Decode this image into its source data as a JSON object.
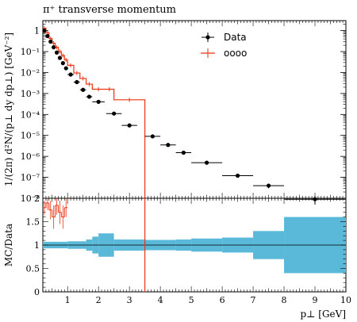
{
  "chart_data": {
    "type": "scatter",
    "title": "π⁺ transverse momentum",
    "ylabel": "1/(2π) d²N/(p⊥ dy dp⊥) [GeV⁻²]",
    "xlabel": "p⊥ [GeV]",
    "ratio_ylabel": "MC/Data",
    "xlim": [
      0.2,
      10
    ],
    "ylim_log": [
      1e-08,
      3
    ],
    "ratio_ylim": [
      0,
      2
    ],
    "x_ticks": [
      "1",
      "2",
      "3",
      "4",
      "5",
      "6",
      "7",
      "8",
      "9",
      "10"
    ],
    "y_ticks": [
      "1",
      "10⁻¹",
      "10⁻²",
      "10⁻³",
      "10⁻⁴",
      "10⁻⁵",
      "10⁻⁶",
      "10⁻⁷",
      "10⁻⁸"
    ],
    "ratio_y_ticks": [
      "0",
      "0.5",
      "1",
      "1.5",
      "2"
    ],
    "legend": {
      "position": "top-right",
      "entries": [
        "Data",
        "oooo"
      ]
    },
    "series": [
      {
        "name": "Data",
        "color": "#000000",
        "points": [
          {
            "x": 0.25,
            "y": 1.0,
            "xerr": 0.05,
            "yerr": 0.1
          },
          {
            "x": 0.35,
            "y": 0.55,
            "xerr": 0.05,
            "yerr": 0.06
          },
          {
            "x": 0.45,
            "y": 0.3,
            "xerr": 0.05,
            "yerr": 0.03
          },
          {
            "x": 0.55,
            "y": 0.16,
            "xerr": 0.05,
            "yerr": 0.02
          },
          {
            "x": 0.65,
            "y": 0.09,
            "xerr": 0.05,
            "yerr": 0.01
          },
          {
            "x": 0.75,
            "y": 0.05,
            "xerr": 0.05,
            "yerr": 0.005
          },
          {
            "x": 0.85,
            "y": 0.028,
            "xerr": 0.05,
            "yerr": 0.003
          },
          {
            "x": 0.95,
            "y": 0.016,
            "xerr": 0.05,
            "yerr": 0.002
          },
          {
            "x": 1.1,
            "y": 0.008,
            "xerr": 0.1,
            "yerr": 0.001
          },
          {
            "x": 1.3,
            "y": 0.0035,
            "xerr": 0.1,
            "yerr": 0.0004
          },
          {
            "x": 1.5,
            "y": 0.0015,
            "xerr": 0.1,
            "yerr": 0.0002
          },
          {
            "x": 1.7,
            "y": 0.0007,
            "xerr": 0.1,
            "yerr": 0.0001
          },
          {
            "x": 2.0,
            "y": 0.0004,
            "xerr": 0.2,
            "yerr": 6e-05
          },
          {
            "x": 2.5,
            "y": 0.00011,
            "xerr": 0.25,
            "yerr": 2e-05
          },
          {
            "x": 3.0,
            "y": 3e-05,
            "xerr": 0.25,
            "yerr": 5e-06
          },
          {
            "x": 3.75,
            "y": 9e-06,
            "xerr": 0.25,
            "yerr": 1.2e-06
          },
          {
            "x": 4.25,
            "y": 3.5e-06,
            "xerr": 0.25,
            "yerr": 5e-07
          },
          {
            "x": 4.75,
            "y": 1.5e-06,
            "xerr": 0.25,
            "yerr": 2e-07
          },
          {
            "x": 5.5,
            "y": 5e-07,
            "xerr": 0.5,
            "yerr": 7e-08
          },
          {
            "x": 6.5,
            "y": 1.2e-07,
            "xerr": 0.5,
            "yerr": 2e-08
          },
          {
            "x": 7.5,
            "y": 4e-08,
            "xerr": 0.5,
            "yerr": 1e-08
          },
          {
            "x": 9.0,
            "y": 9e-09,
            "xerr": 1.0,
            "yerr": 4e-09
          }
        ]
      },
      {
        "name": "oooo",
        "color": "#ee3311",
        "histogram": [
          {
            "x0": 0.2,
            "x1": 0.3,
            "y": 1.3
          },
          {
            "x0": 0.3,
            "x1": 0.4,
            "y": 0.8
          },
          {
            "x0": 0.4,
            "x1": 0.5,
            "y": 0.42
          },
          {
            "x0": 0.5,
            "x1": 0.6,
            "y": 0.25
          },
          {
            "x0": 0.6,
            "x1": 0.7,
            "y": 0.16
          },
          {
            "x0": 0.7,
            "x1": 0.8,
            "y": 0.1
          },
          {
            "x0": 0.8,
            "x1": 0.9,
            "y": 0.065
          },
          {
            "x0": 0.9,
            "x1": 1.0,
            "y": 0.04
          },
          {
            "x0": 1.0,
            "x1": 1.2,
            "y": 0.022
          },
          {
            "x0": 1.2,
            "x1": 1.4,
            "y": 0.0095
          },
          {
            "x0": 1.4,
            "x1": 1.6,
            "y": 0.0052
          },
          {
            "x0": 1.6,
            "x1": 1.8,
            "y": 0.0028
          },
          {
            "x0": 1.8,
            "x1": 2.2,
            "y": 0.0016
          },
          {
            "x0": 2.2,
            "x1": 2.5,
            "y": 0.0016
          },
          {
            "x0": 2.5,
            "x1": 3.5,
            "y": 0.0005
          }
        ]
      }
    ],
    "ratio": {
      "band": [
        {
          "x0": 0.2,
          "x1": 1.0,
          "lo": 0.93,
          "hi": 1.07
        },
        {
          "x0": 1.0,
          "x1": 1.6,
          "lo": 0.92,
          "hi": 1.08
        },
        {
          "x0": 1.6,
          "x1": 1.8,
          "lo": 0.88,
          "hi": 1.12
        },
        {
          "x0": 1.8,
          "x1": 2.0,
          "lo": 0.82,
          "hi": 1.18
        },
        {
          "x0": 2.0,
          "x1": 2.5,
          "lo": 0.75,
          "hi": 1.25
        },
        {
          "x0": 2.5,
          "x1": 3.5,
          "lo": 0.88,
          "hi": 1.12
        },
        {
          "x0": 3.5,
          "x1": 4.5,
          "lo": 0.89,
          "hi": 1.11
        },
        {
          "x0": 4.5,
          "x1": 5.0,
          "lo": 0.88,
          "hi": 1.12
        },
        {
          "x0": 5.0,
          "x1": 6.0,
          "lo": 0.86,
          "hi": 1.14
        },
        {
          "x0": 6.0,
          "x1": 7.0,
          "lo": 0.84,
          "hi": 1.16
        },
        {
          "x0": 7.0,
          "x1": 8.0,
          "lo": 0.7,
          "hi": 1.3
        },
        {
          "x0": 8.0,
          "x1": 10.0,
          "lo": 0.4,
          "hi": 1.6
        }
      ],
      "mc": [
        {
          "x0": 0.2,
          "x1": 0.3,
          "y": 1.8,
          "err": 0.15
        },
        {
          "x0": 0.3,
          "x1": 0.4,
          "y": 1.9,
          "err": 0.15
        },
        {
          "x0": 0.4,
          "x1": 0.5,
          "y": 1.75,
          "err": 0.2
        },
        {
          "x0": 0.5,
          "x1": 0.6,
          "y": 1.6,
          "err": 0.25
        },
        {
          "x0": 0.6,
          "x1": 0.7,
          "y": 1.85,
          "err": 0.2
        },
        {
          "x0": 0.7,
          "x1": 0.8,
          "y": 1.7,
          "err": 0.25
        },
        {
          "x0": 0.8,
          "x1": 0.9,
          "y": 1.6,
          "err": 0.25
        },
        {
          "x0": 0.9,
          "x1": 1.0,
          "y": 1.8,
          "err": 0.2
        }
      ],
      "mc_drop_x": 3.5
    }
  }
}
